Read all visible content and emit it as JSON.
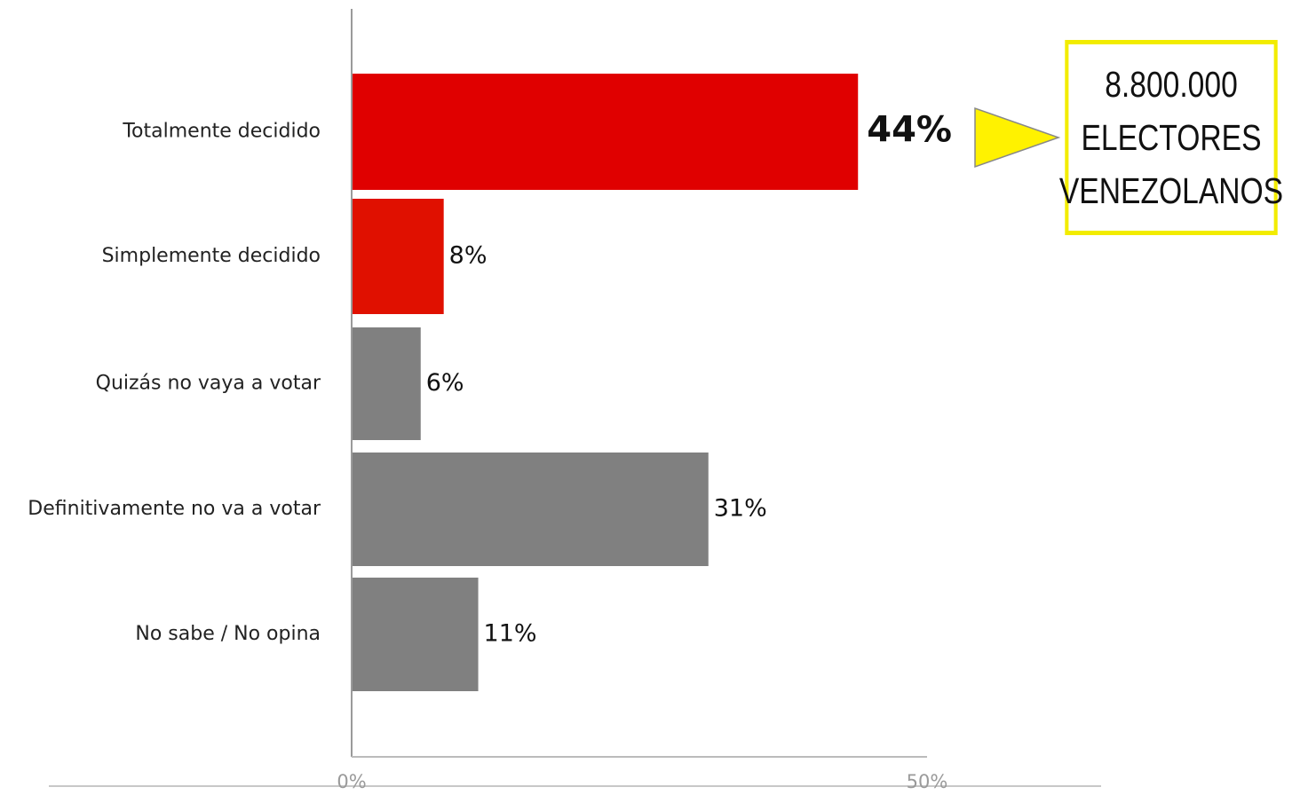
{
  "chart_data": {
    "type": "bar",
    "orientation": "horizontal",
    "categories": [
      "Totalmente decidido",
      "Simplemente decidido",
      "Quizás no vaya a votar",
      "Definitivamente no va a votar",
      "No sabe / No opina"
    ],
    "values": [
      44,
      8,
      6,
      31,
      11
    ],
    "value_labels": [
      "44%",
      "8%",
      "6%",
      "31%",
      "11%"
    ],
    "bar_colors": [
      "#e00000",
      "#e01000",
      "#808080",
      "#808080",
      "#808080"
    ],
    "highlight_index": 0,
    "xlim": [
      0,
      50
    ],
    "x_ticks": [
      0,
      50
    ],
    "x_tick_labels": [
      "0%",
      "50%"
    ],
    "grid": false,
    "title": "",
    "xlabel": "",
    "ylabel": ""
  },
  "callout": {
    "lines": [
      "8.800.000",
      "ELECTORES",
      "VENEZOLANOS"
    ],
    "border_color": "#f2ec00",
    "arrow_color": "#fff200"
  }
}
